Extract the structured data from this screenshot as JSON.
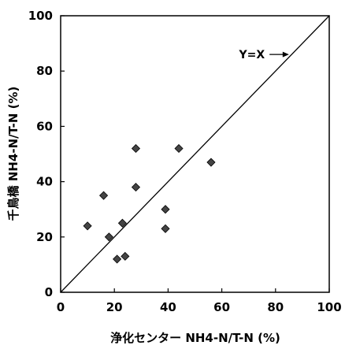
{
  "chart_data": {
    "type": "scatter",
    "xlabel": "浄化センター NH4-N/T-N (%)",
    "ylabel": "千鳥橋 NH4-N/T-N (%)",
    "xlim": [
      0,
      100
    ],
    "ylim": [
      0,
      100
    ],
    "xticks": [
      "0",
      "20",
      "40",
      "60",
      "80",
      "100"
    ],
    "yticks": [
      "0",
      "20",
      "40",
      "60",
      "80",
      "100"
    ],
    "grid": false,
    "series": [
      {
        "points": [
          {
            "x": 10,
            "y": 24
          },
          {
            "x": 16,
            "y": 35
          },
          {
            "x": 18,
            "y": 20
          },
          {
            "x": 21,
            "y": 12
          },
          {
            "x": 23,
            "y": 25
          },
          {
            "x": 24,
            "y": 13
          },
          {
            "x": 28,
            "y": 52
          },
          {
            "x": 28,
            "y": 38
          },
          {
            "x": 39,
            "y": 30
          },
          {
            "x": 39,
            "y": 23
          },
          {
            "x": 44,
            "y": 52
          },
          {
            "x": 56,
            "y": 47
          }
        ]
      }
    ],
    "reference_line": {
      "from": [
        0,
        0
      ],
      "to": [
        100,
        100
      ]
    },
    "annotations": [
      {
        "text": "Y=X",
        "x": 76,
        "y": 86,
        "arrow_to": [
          85,
          86
        ]
      }
    ]
  }
}
